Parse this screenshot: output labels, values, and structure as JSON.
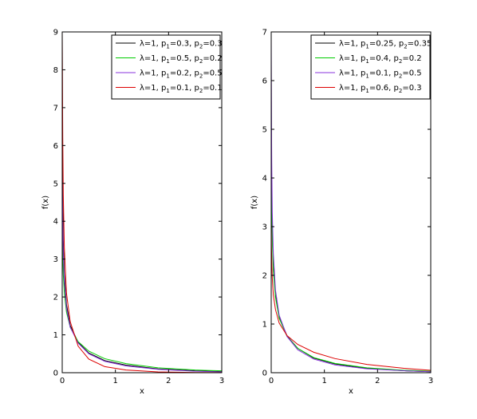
{
  "chart_data": [
    {
      "type": "line",
      "xlabel": "x",
      "ylabel": "f(x)",
      "xlim": [
        0,
        3
      ],
      "ylim": [
        0,
        9
      ],
      "xticks": [
        0,
        1,
        2,
        3
      ],
      "yticks": [
        0,
        1,
        2,
        3,
        4,
        5,
        6,
        7,
        8,
        9
      ],
      "grid": false,
      "legend_position": "top-right",
      "series": [
        {
          "lambda": 1,
          "p1": 0.3,
          "p2": 0.3,
          "color": "#000000",
          "legend": {
            "main": "λ=1, p",
            "sub1": "1",
            "mid": "=0.3, p",
            "sub2": "2",
            "tail": "=0.3"
          },
          "x": [
            0,
            0.005,
            0.01,
            0.02,
            0.04,
            0.08,
            0.15,
            0.3,
            0.5,
            0.8,
            1.2,
            1.8,
            2.5,
            3
          ],
          "y": [
            9,
            5.6,
            4.6,
            3.5,
            2.6,
            1.8,
            1.25,
            0.8,
            0.52,
            0.32,
            0.2,
            0.1,
            0.05,
            0.03
          ]
        },
        {
          "lambda": 1,
          "p1": 0.5,
          "p2": 0.2,
          "color": "#00cc00",
          "legend": {
            "main": "λ=1, p",
            "sub1": "1",
            "mid": "=0.5, p",
            "sub2": "2",
            "tail": "=0.2"
          },
          "x": [
            0,
            0.005,
            0.01,
            0.02,
            0.04,
            0.08,
            0.15,
            0.3,
            0.5,
            0.8,
            1.2,
            1.8,
            2.5,
            3
          ],
          "y": [
            4.5,
            3.6,
            3.1,
            2.6,
            2.1,
            1.6,
            1.2,
            0.82,
            0.57,
            0.37,
            0.24,
            0.13,
            0.07,
            0.05
          ]
        },
        {
          "lambda": 1,
          "p1": 0.2,
          "p2": 0.5,
          "color": "#8833dd",
          "legend": {
            "main": "λ=1, p",
            "sub1": "1",
            "mid": "=0.2, p",
            "sub2": "2",
            "tail": "=0.5"
          },
          "x": [
            0,
            0.005,
            0.01,
            0.02,
            0.04,
            0.08,
            0.15,
            0.3,
            0.5,
            0.8,
            1.2,
            1.8,
            2.5,
            3
          ],
          "y": [
            6.5,
            4.6,
            3.9,
            3.1,
            2.4,
            1.7,
            1.2,
            0.78,
            0.5,
            0.3,
            0.18,
            0.09,
            0.04,
            0.02
          ]
        },
        {
          "lambda": 1,
          "p1": 0.1,
          "p2": 0.1,
          "color": "#dd0000",
          "legend": {
            "main": "λ=1, p",
            "sub1": "1",
            "mid": "=0.1, p",
            "sub2": "2",
            "tail": "=0.1"
          },
          "x": [
            0,
            0.005,
            0.01,
            0.02,
            0.04,
            0.08,
            0.15,
            0.3,
            0.5,
            0.8,
            1.2,
            1.8,
            2.5,
            3
          ],
          "y": [
            9,
            7.5,
            6.2,
            4.7,
            3.3,
            2.1,
            1.35,
            0.7,
            0.36,
            0.16,
            0.07,
            0.02,
            0.005,
            0.002
          ]
        }
      ]
    },
    {
      "type": "line",
      "xlabel": "x",
      "ylabel": "f(x)",
      "xlim": [
        0,
        3
      ],
      "ylim": [
        0,
        7
      ],
      "xticks": [
        0,
        1,
        2,
        3
      ],
      "yticks": [
        0,
        1,
        2,
        3,
        4,
        5,
        6,
        7
      ],
      "grid": false,
      "legend_position": "top-right",
      "series": [
        {
          "lambda": 1,
          "p1": 0.25,
          "p2": 0.35,
          "color": "#000000",
          "legend": {
            "main": "λ=1, p",
            "sub1": "1",
            "mid": "=0.25, p",
            "sub2": "2",
            "tail": "=0.35"
          },
          "x": [
            0,
            0.005,
            0.01,
            0.02,
            0.04,
            0.08,
            0.15,
            0.3,
            0.5,
            0.8,
            1.2,
            1.8,
            2.5,
            3
          ],
          "y": [
            6.5,
            4.4,
            3.7,
            2.9,
            2.2,
            1.6,
            1.15,
            0.75,
            0.5,
            0.3,
            0.18,
            0.09,
            0.04,
            0.02
          ]
        },
        {
          "lambda": 1,
          "p1": 0.4,
          "p2": 0.2,
          "color": "#00cc00",
          "legend": {
            "main": "λ=1, p",
            "sub1": "1",
            "mid": "=0.4, p",
            "sub2": "2",
            "tail": "=0.2"
          },
          "x": [
            0,
            0.005,
            0.01,
            0.02,
            0.04,
            0.08,
            0.15,
            0.3,
            0.5,
            0.8,
            1.2,
            1.8,
            2.5,
            3
          ],
          "y": [
            5.5,
            4.0,
            3.4,
            2.75,
            2.1,
            1.55,
            1.12,
            0.74,
            0.5,
            0.31,
            0.19,
            0.1,
            0.05,
            0.03
          ]
        },
        {
          "lambda": 1,
          "p1": 0.1,
          "p2": 0.5,
          "color": "#8833dd",
          "legend": {
            "main": "λ=1, p",
            "sub1": "1",
            "mid": "=0.1, p",
            "sub2": "2",
            "tail": "=0.5"
          },
          "x": [
            0,
            0.005,
            0.01,
            0.02,
            0.04,
            0.08,
            0.15,
            0.3,
            0.5,
            0.8,
            1.2,
            1.8,
            2.5,
            3
          ],
          "y": [
            7,
            5.2,
            4.3,
            3.3,
            2.45,
            1.7,
            1.18,
            0.74,
            0.47,
            0.28,
            0.16,
            0.08,
            0.04,
            0.02
          ]
        },
        {
          "lambda": 1,
          "p1": 0.6,
          "p2": 0.3,
          "color": "#dd0000",
          "legend": {
            "main": "λ=1, p",
            "sub1": "1",
            "mid": "=0.6, p",
            "sub2": "2",
            "tail": "=0.3"
          },
          "x": [
            0,
            0.005,
            0.01,
            0.02,
            0.04,
            0.08,
            0.15,
            0.3,
            0.5,
            0.8,
            1.2,
            1.8,
            2.5,
            3
          ],
          "y": [
            3.2,
            2.6,
            2.3,
            1.95,
            1.6,
            1.3,
            1.02,
            0.76,
            0.58,
            0.42,
            0.29,
            0.17,
            0.09,
            0.05
          ]
        }
      ]
    }
  ]
}
